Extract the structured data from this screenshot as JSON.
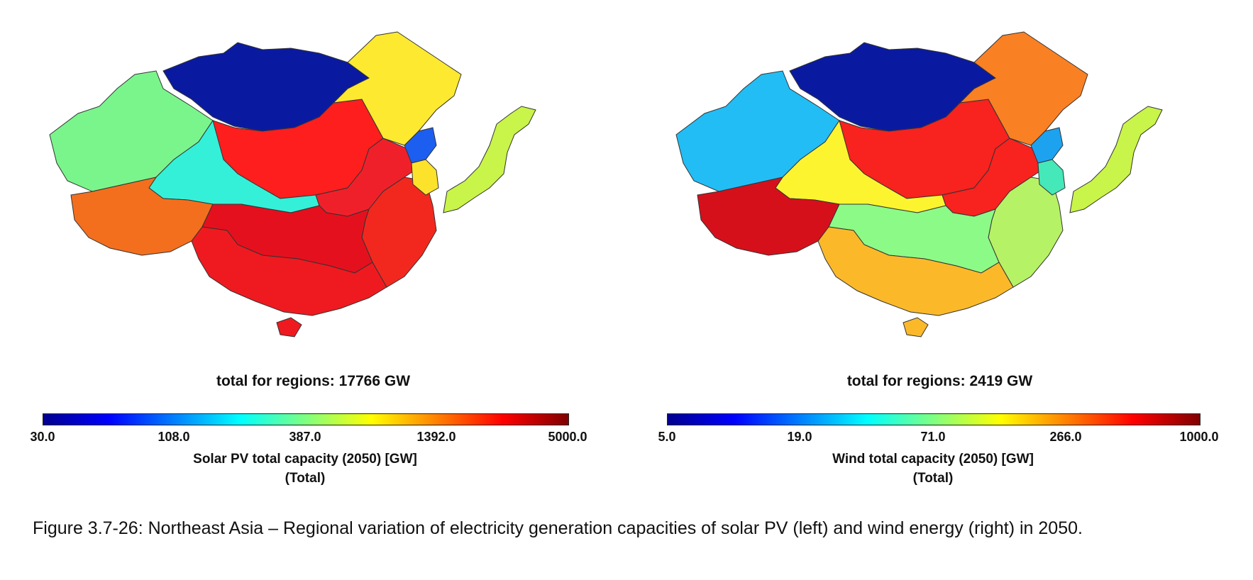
{
  "maps": [
    {
      "total": "total for regions: 17766 GW",
      "ticks": [
        "30.0",
        "108.0",
        "387.0",
        "1392.0",
        "5000.0"
      ],
      "title": "Solar PV total capacity (2050) [GW]",
      "subtitle": "(Total)",
      "colors": {
        "mongolia": "#0a1aa0",
        "northwest": "#7af58c",
        "inner_mongolia_north": "#ff1e1e",
        "central_band": "#35f0d8",
        "tibet": "#f36f1e",
        "north_china": "#f0202a",
        "east_coast": "#f2281f",
        "south_central": "#e5101e",
        "south": "#ef1a20",
        "hainan": "#ef1a20",
        "northeast": "#fde930",
        "north_korea": "#1c5ef0",
        "south_korea": "#fde22b",
        "japan": "#c9f449"
      }
    },
    {
      "total": "total for regions: 2419 GW",
      "ticks": [
        "5.0",
        "19.0",
        "71.0",
        "266.0",
        "1000.0"
      ],
      "title": "Wind total capacity (2050) [GW]",
      "subtitle": "(Total)",
      "colors": {
        "mongolia": "#0a1aa0",
        "northwest": "#22bdf5",
        "inner_mongolia_north": "#f8221e",
        "central_band": "#fdf430",
        "tibet": "#d6101b",
        "north_china": "#f8221e",
        "east_coast": "#b6f266",
        "south_central": "#8cfa87",
        "south": "#fbb92a",
        "hainan": "#fbb92a",
        "northeast": "#fa8024",
        "north_korea": "#1da2f0",
        "south_korea": "#45e8b8",
        "japan": "#c9f449"
      }
    }
  ],
  "colormap": [
    "#00008f",
    "#0000ff",
    "#0080ff",
    "#00ffff",
    "#80ff80",
    "#ffff00",
    "#ff8000",
    "#ff0000",
    "#800000"
  ],
  "caption": "Figure 3.7-26: Northeast Asia – Regional variation of electricity generation capacities of solar PV (left) and wind energy (right) in 2050."
}
